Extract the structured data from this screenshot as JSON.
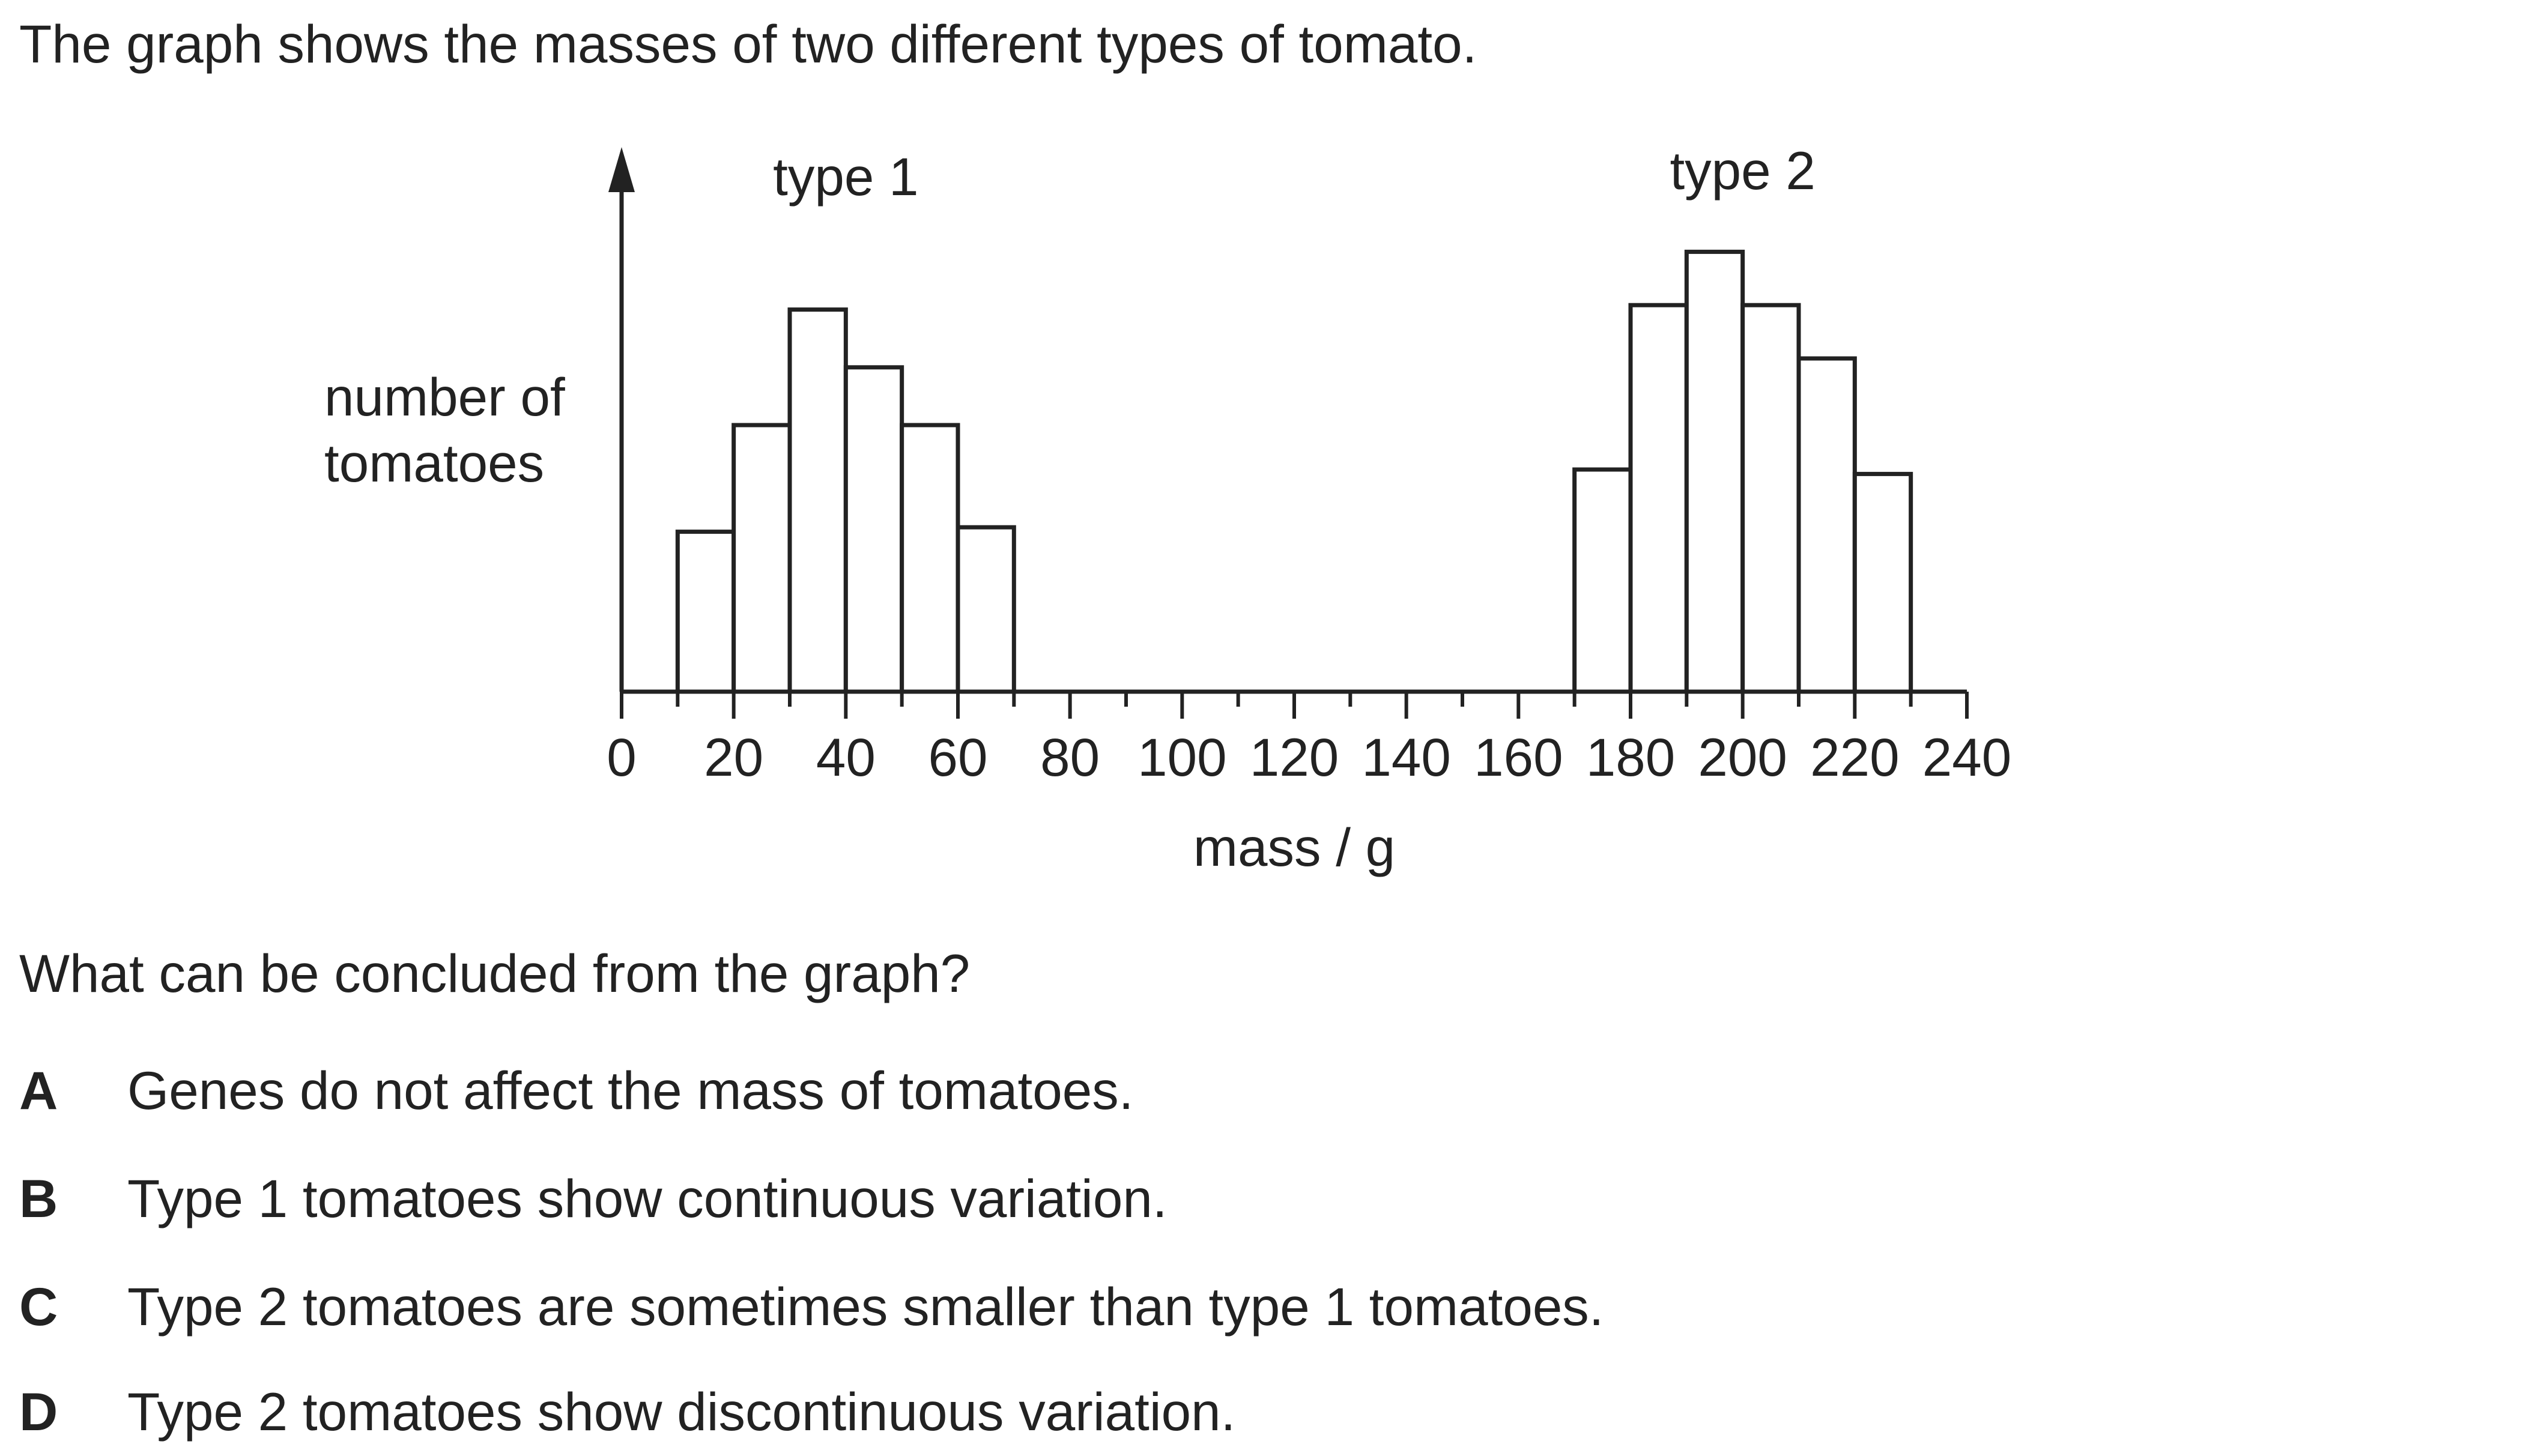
{
  "intro": "The graph shows the masses of two different types of tomato.",
  "question": "What can be concluded from the graph?",
  "options": [
    {
      "letter": "A",
      "text": "Genes do not affect the mass of tomatoes."
    },
    {
      "letter": "B",
      "text": "Type 1 tomatoes show continuous variation."
    },
    {
      "letter": "C",
      "text": "Type 2 tomatoes are sometimes smaller than type 1 tomatoes."
    },
    {
      "letter": "D",
      "text": "Type 2 tomatoes show discontinuous variation."
    }
  ],
  "chart_data": {
    "type": "bar",
    "xlabel": "mass / g",
    "ylabel": "number of tomatoes",
    "xlim": [
      0,
      240
    ],
    "x_ticks": [
      0,
      20,
      40,
      60,
      80,
      100,
      120,
      140,
      160,
      180,
      200,
      220,
      240
    ],
    "ylim": [
      0,
      100
    ],
    "y_axis_unlabelled": true,
    "series": [
      {
        "name": "type 1",
        "bins": [
          [
            10,
            20
          ],
          [
            20,
            30
          ],
          [
            30,
            40
          ],
          [
            40,
            50
          ],
          [
            50,
            60
          ],
          [
            60,
            70
          ]
        ],
        "values": [
          36,
          60,
          86,
          73,
          60,
          37
        ]
      },
      {
        "name": "type 2",
        "bins": [
          [
            170,
            180
          ],
          [
            180,
            190
          ],
          [
            190,
            200
          ],
          [
            200,
            210
          ],
          [
            210,
            220
          ],
          [
            220,
            230
          ]
        ],
        "values": [
          50,
          87,
          99,
          87,
          75,
          49
        ]
      }
    ],
    "colors": {
      "bar_fill": "#ffffff",
      "stroke": "#222222",
      "text": "#222222"
    }
  }
}
